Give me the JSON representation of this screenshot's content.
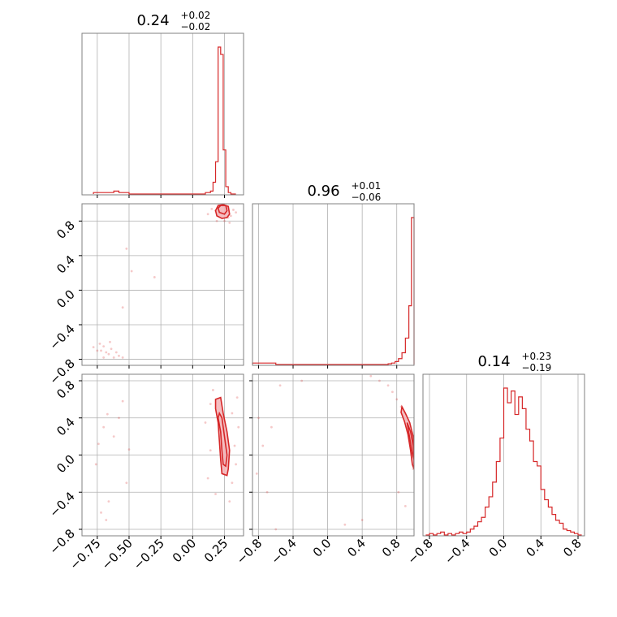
{
  "colors": {
    "accent": "#d62728",
    "fill": "#f4b6b9",
    "grid": "#b0b0b0",
    "frame": "#808080"
  },
  "chart_data": {
    "type": "corner",
    "parameters": 3,
    "grid": true,
    "titles": [
      {
        "value": "0.24",
        "plus": "+0.02",
        "minus": "−0.02"
      },
      {
        "value": "0.96",
        "plus": "+0.01",
        "minus": "−0.06"
      },
      {
        "value": "0.14",
        "plus": "+0.23",
        "minus": "−0.19"
      }
    ],
    "ranges": [
      [
        -0.87,
        0.4
      ],
      [
        -0.87,
        1.0
      ],
      [
        -0.87,
        0.87
      ]
    ],
    "ticks": [
      {
        "values": [
          -0.75,
          -0.5,
          -0.25,
          0.0,
          0.25
        ],
        "labels": [
          "−0.75",
          "−0.50",
          "−0.25",
          "0.00",
          "0.25"
        ]
      },
      {
        "values": [
          -0.8,
          -0.4,
          0.0,
          0.4,
          0.8
        ],
        "labels": [
          "−0.8",
          "−0.4",
          "0.0",
          "0.4",
          "0.8"
        ]
      },
      {
        "values": [
          -0.8,
          -0.4,
          0.0,
          0.4,
          0.8
        ],
        "labels": [
          "−0.8",
          "−0.4",
          "0.0",
          "0.4",
          "0.8"
        ]
      }
    ],
    "histograms": [
      {
        "parameter": 0,
        "bin_edges": [
          -0.78,
          -0.74,
          -0.7,
          -0.66,
          -0.62,
          -0.58,
          -0.54,
          -0.5,
          0.1,
          0.14,
          0.16,
          0.18,
          0.2,
          0.22,
          0.24,
          0.26,
          0.28,
          0.3,
          0.34
        ],
        "counts": [
          1,
          1,
          1,
          1,
          2,
          1,
          1,
          0,
          1,
          2,
          8,
          22,
          100,
          95,
          30,
          5,
          1,
          0
        ]
      },
      {
        "parameter": 1,
        "bin_edges": [
          -0.87,
          -0.6,
          0.7,
          0.74,
          0.78,
          0.82,
          0.86,
          0.9,
          0.94,
          0.97,
          1.0
        ],
        "counts": [
          1,
          0,
          0.5,
          1,
          2,
          4,
          8,
          18,
          40,
          100
        ]
      },
      {
        "parameter": 2,
        "bin_edges": [
          -0.84,
          -0.8,
          -0.76,
          -0.72,
          -0.68,
          -0.64,
          -0.6,
          -0.56,
          -0.52,
          -0.48,
          -0.44,
          -0.4,
          -0.36,
          -0.32,
          -0.28,
          -0.24,
          -0.2,
          -0.16,
          -0.12,
          -0.08,
          -0.04,
          0.0,
          0.04,
          0.08,
          0.12,
          0.16,
          0.2,
          0.24,
          0.28,
          0.32,
          0.36,
          0.4,
          0.44,
          0.48,
          0.52,
          0.56,
          0.6,
          0.64,
          0.68,
          0.72,
          0.76,
          0.8,
          0.84
        ],
        "counts": [
          0,
          1,
          0,
          1,
          2,
          0,
          1,
          0,
          1,
          2,
          1,
          2,
          4,
          6,
          9,
          12,
          19,
          26,
          36,
          50,
          66,
          100,
          90,
          98,
          82,
          94,
          86,
          72,
          64,
          50,
          47,
          31,
          24,
          19,
          14,
          10,
          8,
          4,
          3,
          2,
          1,
          0
        ]
      }
    ],
    "pairs": [
      {
        "x_param": 0,
        "y_param": 1,
        "scatter": [
          [
            0.18,
            0.92
          ],
          [
            0.2,
            0.88
          ],
          [
            0.22,
            0.9
          ],
          [
            0.27,
            0.95
          ],
          [
            0.3,
            0.86
          ],
          [
            0.25,
            0.8
          ],
          [
            0.32,
            0.93
          ],
          [
            0.15,
            0.94
          ],
          [
            0.19,
            0.8
          ],
          [
            0.34,
            0.9
          ],
          [
            0.28,
            0.84
          ],
          [
            0.21,
            0.96
          ],
          [
            0.12,
            0.88
          ],
          [
            0.29,
            0.78
          ],
          [
            -0.52,
            0.48
          ],
          [
            -0.48,
            0.22
          ],
          [
            -0.3,
            0.15
          ],
          [
            -0.55,
            -0.2
          ],
          [
            -0.65,
            -0.6
          ],
          [
            -0.7,
            -0.65
          ],
          [
            -0.72,
            -0.7
          ],
          [
            -0.66,
            -0.74
          ],
          [
            -0.75,
            -0.7
          ],
          [
            -0.6,
            -0.72
          ],
          [
            -0.62,
            -0.78
          ],
          [
            -0.58,
            -0.76
          ],
          [
            -0.78,
            -0.66
          ],
          [
            -0.68,
            -0.72
          ],
          [
            -0.55,
            -0.78
          ],
          [
            -0.73,
            -0.62
          ],
          [
            -0.64,
            -0.68
          ],
          [
            -0.7,
            -0.78
          ]
        ],
        "contours": [
          {
            "level": "outer",
            "points": [
              [
                0.19,
                0.86
              ],
              [
                0.23,
                0.83
              ],
              [
                0.27,
                0.84
              ],
              [
                0.29,
                0.88
              ],
              [
                0.28,
                0.97
              ],
              [
                0.24,
                0.99
              ],
              [
                0.2,
                0.98
              ],
              [
                0.18,
                0.92
              ]
            ]
          },
          {
            "level": "inner",
            "points": [
              [
                0.21,
                0.9
              ],
              [
                0.25,
                0.88
              ],
              [
                0.27,
                0.92
              ],
              [
                0.26,
                0.98
              ],
              [
                0.22,
                0.98
              ],
              [
                0.2,
                0.95
              ]
            ]
          }
        ]
      },
      {
        "x_param": 0,
        "y_param": 2,
        "scatter": [
          [
            0.16,
            0.7
          ],
          [
            0.14,
            0.55
          ],
          [
            0.31,
            0.45
          ],
          [
            0.33,
            0.1
          ],
          [
            0.34,
            -0.1
          ],
          [
            0.31,
            -0.3
          ],
          [
            0.14,
            0.05
          ],
          [
            0.12,
            -0.25
          ],
          [
            0.18,
            -0.42
          ],
          [
            0.29,
            -0.5
          ],
          [
            0.36,
            0.3
          ],
          [
            0.1,
            0.35
          ],
          [
            0.35,
            0.62
          ],
          [
            -0.67,
            0.44
          ],
          [
            -0.7,
            0.3
          ],
          [
            -0.62,
            0.2
          ],
          [
            -0.74,
            0.12
          ],
          [
            -0.58,
            0.4
          ],
          [
            -0.76,
            -0.1
          ],
          [
            -0.66,
            -0.5
          ],
          [
            -0.52,
            -0.3
          ],
          [
            -0.55,
            0.58
          ],
          [
            -0.5,
            0.06
          ],
          [
            -0.72,
            -0.62
          ],
          [
            -0.68,
            -0.7
          ]
        ],
        "contours": [
          {
            "level": "outer",
            "points": [
              [
                0.18,
                0.6
              ],
              [
                0.22,
                0.62
              ],
              [
                0.24,
                0.45
              ],
              [
                0.27,
                0.25
              ],
              [
                0.29,
                0.05
              ],
              [
                0.28,
                -0.15
              ],
              [
                0.27,
                -0.22
              ],
              [
                0.23,
                -0.2
              ],
              [
                0.22,
                -0.05
              ],
              [
                0.21,
                0.15
              ],
              [
                0.2,
                0.35
              ],
              [
                0.18,
                0.5
              ]
            ]
          },
          {
            "level": "inner",
            "points": [
              [
                0.21,
                0.45
              ],
              [
                0.23,
                0.4
              ],
              [
                0.25,
                0.2
              ],
              [
                0.27,
                0.0
              ],
              [
                0.26,
                -0.12
              ],
              [
                0.24,
                -0.1
              ],
              [
                0.23,
                0.05
              ],
              [
                0.22,
                0.25
              ],
              [
                0.2,
                0.4
              ]
            ]
          }
        ]
      },
      {
        "x_param": 1,
        "y_param": 2,
        "scatter": [
          [
            0.7,
            0.75
          ],
          [
            0.75,
            0.68
          ],
          [
            0.8,
            0.6
          ],
          [
            0.85,
            0.52
          ],
          [
            0.88,
            0.45
          ],
          [
            0.91,
            0.38
          ],
          [
            0.94,
            0.3
          ],
          [
            0.96,
            0.2
          ],
          [
            0.98,
            0.1
          ],
          [
            0.99,
            -0.05
          ],
          [
            0.99,
            -0.15
          ],
          [
            0.6,
            0.8
          ],
          [
            0.5,
            0.85
          ],
          [
            0.82,
            -0.4
          ],
          [
            0.9,
            -0.55
          ],
          [
            0.4,
            -0.7
          ],
          [
            -0.8,
            0.4
          ],
          [
            -0.75,
            0.1
          ],
          [
            -0.82,
            -0.2
          ],
          [
            -0.65,
            0.3
          ],
          [
            -0.7,
            -0.4
          ],
          [
            -0.55,
            0.75
          ],
          [
            -0.3,
            0.8
          ],
          [
            0.2,
            -0.75
          ],
          [
            -0.6,
            -0.8
          ]
        ],
        "contours": [
          {
            "level": "outer",
            "points": [
              [
                0.86,
                0.52
              ],
              [
                0.9,
                0.45
              ],
              [
                0.95,
                0.35
              ],
              [
                0.99,
                0.2
              ],
              [
                1.0,
                0.05
              ],
              [
                1.0,
                -0.15
              ],
              [
                0.98,
                -0.1
              ],
              [
                0.96,
                0.05
              ],
              [
                0.93,
                0.22
              ],
              [
                0.89,
                0.36
              ],
              [
                0.85,
                0.46
              ]
            ]
          },
          {
            "level": "inner",
            "points": [
              [
                0.92,
                0.35
              ],
              [
                0.96,
                0.25
              ],
              [
                0.99,
                0.1
              ],
              [
                1.0,
                -0.05
              ],
              [
                0.98,
                0.02
              ],
              [
                0.95,
                0.18
              ]
            ]
          }
        ]
      }
    ]
  }
}
